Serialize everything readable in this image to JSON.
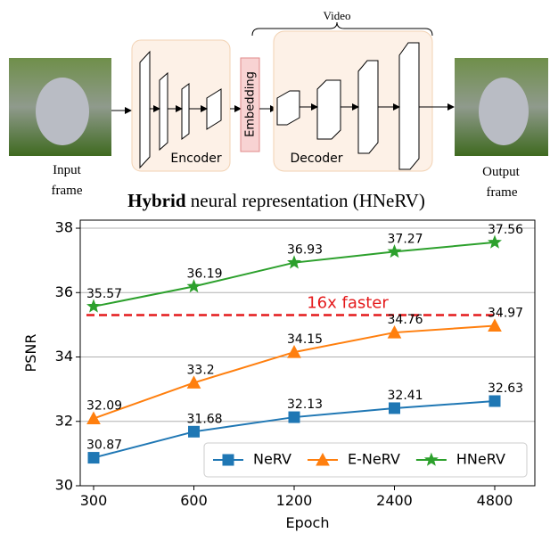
{
  "diagram": {
    "video_label": "Video",
    "input_label": "Input",
    "input_label_2": "frame",
    "encoder": "Encoder",
    "embedding": "Embedding",
    "decoder": "Decoder",
    "output_label": "Output",
    "output_label_2": "frame",
    "caption_bold": "Hybrid",
    "caption_rest": "neural representation (HNeRV)"
  },
  "chart_data": {
    "type": "line",
    "xlabel": "Epoch",
    "ylabel": "PSNR",
    "categories": [
      "300",
      "600",
      "1200",
      "2400",
      "4800"
    ],
    "series": [
      {
        "name": "NeRV",
        "color": "#1f77b4",
        "marker": "square",
        "values": [
          30.87,
          31.68,
          32.13,
          32.41,
          32.63
        ]
      },
      {
        "name": "E-NeRV",
        "color": "#ff7f0e",
        "marker": "triangle",
        "values": [
          32.09,
          33.2,
          34.15,
          34.76,
          34.97
        ]
      },
      {
        "name": "HNeRV",
        "color": "#2ca02c",
        "marker": "star",
        "values": [
          35.57,
          36.19,
          36.93,
          37.27,
          37.56
        ]
      }
    ],
    "ylim": [
      30,
      38.25
    ],
    "yticks": [
      30,
      32,
      34,
      36,
      38
    ],
    "grid": true,
    "legend": "lower right",
    "reference_line": {
      "value": 35.3,
      "color": "#e41a1c",
      "label": "16x faster"
    }
  }
}
